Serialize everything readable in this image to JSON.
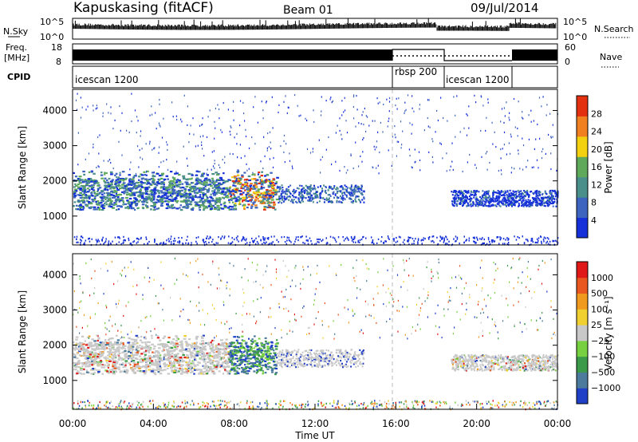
{
  "header": {
    "station": "Kapuskasing (fitACF)",
    "beam": "Beam 01",
    "date": "09/Jul/2014"
  },
  "noise_panel": {
    "left_label": "N.Sky",
    "right_label": "N.Search",
    "left_ticks": [
      "10^5",
      "10^0"
    ],
    "right_ticks": [
      "10^5",
      "10^0"
    ]
  },
  "freq_panel": {
    "left_label": "Freq.",
    "left_unit": "[MHz]",
    "right_label": "Nave",
    "left_ticks": [
      "18",
      "8"
    ],
    "right_ticks": [
      "60",
      "0"
    ]
  },
  "cpid_panel": {
    "label": "CPID",
    "segments": [
      {
        "name": "icescan 1200",
        "start": "00:00",
        "end": "16:00"
      },
      {
        "name": "rbsp 200",
        "start": "16:00",
        "end": "18:40"
      },
      {
        "name": "icescan 1200",
        "start": "18:40",
        "end": "22:00"
      }
    ]
  },
  "chart_data": [
    {
      "type": "heatmap",
      "title": "Power",
      "ylabel": "Slant Range [km]",
      "xlim": [
        "00:00",
        "00:00"
      ],
      "ylim": [
        180,
        4600
      ],
      "yticks": [
        "1000",
        "2000",
        "3000",
        "4000"
      ],
      "colorbar": {
        "label": "Power [dB]",
        "ticks": [
          "4",
          "8",
          "12",
          "16",
          "20",
          "24",
          "28"
        ],
        "range": [
          0,
          30
        ]
      },
      "colors": [
        "#1530d8",
        "#3d64bf",
        "#4a8f8a",
        "#5faa5a",
        "#f3d010",
        "#f08020",
        "#e23010"
      ]
    },
    {
      "type": "heatmap",
      "title": "Velocity",
      "ylabel": "Slant Range [km]",
      "xlabel": "Time UT",
      "xticks": [
        "00:00",
        "04:00",
        "08:00",
        "12:00",
        "16:00",
        "20:00",
        "00:00"
      ],
      "ylim": [
        180,
        4600
      ],
      "yticks": [
        "1000",
        "2000",
        "3000",
        "4000"
      ],
      "colorbar": {
        "label": "Velocity [m s⁻¹]",
        "ticks": [
          "1000",
          "500",
          "100",
          "25",
          "−25",
          "−100",
          "−500",
          "−1000"
        ]
      },
      "colors": [
        "#2040c8",
        "#4b7a9c",
        "#3b9a4a",
        "#76d040",
        "#c8c8c8",
        "#f0d030",
        "#f09a20",
        "#e85820",
        "#e01818"
      ]
    }
  ]
}
